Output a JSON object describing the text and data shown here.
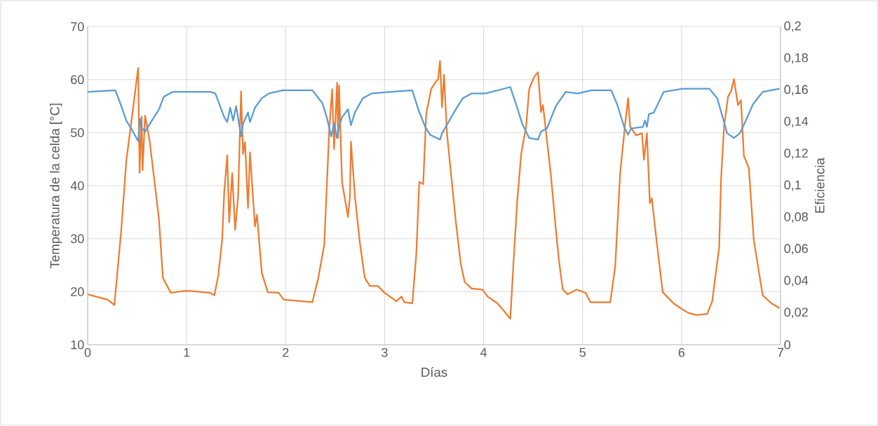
{
  "chart_data": {
    "type": "line",
    "xlabel": "Días",
    "ylabel": "Temperatura de la celda [°C]",
    "y2label": "Eficiencia",
    "xlim": [
      0,
      7
    ],
    "xticks": [
      0,
      1,
      2,
      3,
      4,
      5,
      6,
      7
    ],
    "ylim": [
      10,
      70
    ],
    "yticks": [
      10,
      20,
      30,
      40,
      50,
      60,
      70
    ],
    "y2lim": [
      0,
      0.2
    ],
    "y2ticks": [
      {
        "value": 0,
        "label": "0"
      },
      {
        "value": 0.02,
        "label": "0,02"
      },
      {
        "value": 0.04,
        "label": "0,04"
      },
      {
        "value": 0.06,
        "label": "0,06"
      },
      {
        "value": 0.08,
        "label": "0,08"
      },
      {
        "value": 0.1,
        "label": "0,1"
      },
      {
        "value": 0.12,
        "label": "0,12"
      },
      {
        "value": 0.14,
        "label": "0,14"
      },
      {
        "value": 0.16,
        "label": "0,16"
      },
      {
        "value": 0.18,
        "label": "0,18"
      },
      {
        "value": 0.2,
        "label": "0,2"
      }
    ],
    "grid": true,
    "series": [
      {
        "color": "#ed7d31",
        "axis": "y",
        "x": [
          0,
          0.1,
          0.2,
          0.27,
          0.34,
          0.39,
          0.46,
          0.51,
          0.525,
          0.545,
          0.555,
          0.58,
          0.625,
          0.67,
          0.72,
          0.76,
          0.84,
          1.0,
          1.24,
          1.28,
          1.32,
          1.36,
          1.38,
          1.41,
          1.43,
          1.46,
          1.49,
          1.52,
          1.55,
          1.57,
          1.59,
          1.62,
          1.64,
          1.69,
          1.71,
          1.76,
          1.82,
          1.93,
          1.98,
          2.16,
          2.27,
          2.33,
          2.39,
          2.42,
          2.44,
          2.47,
          2.49,
          2.52,
          2.53,
          2.54,
          2.57,
          2.61,
          2.63,
          2.65,
          2.66,
          2.7,
          2.75,
          2.8,
          2.85,
          2.93,
          3.0,
          3.12,
          3.17,
          3.2,
          3.28,
          3.32,
          3.35,
          3.39,
          3.42,
          3.47,
          3.51,
          3.54,
          3.56,
          3.58,
          3.6,
          3.63,
          3.67,
          3.72,
          3.77,
          3.81,
          3.88,
          3.99,
          4.04,
          4.14,
          4.2,
          4.27,
          4.3,
          4.34,
          4.38,
          4.43,
          4.46,
          4.51,
          4.55,
          4.58,
          4.6,
          4.64,
          4.68,
          4.73,
          4.76,
          4.8,
          4.85,
          4.94,
          5.03,
          5.08,
          5.28,
          5.33,
          5.38,
          5.43,
          5.46,
          5.48,
          5.54,
          5.6,
          5.62,
          5.65,
          5.68,
          5.7,
          5.75,
          5.81,
          5.92,
          5.99,
          6.07,
          6.15,
          6.26,
          6.31,
          6.34,
          6.38,
          6.4,
          6.43,
          6.47,
          6.5,
          6.53,
          6.57,
          6.6,
          6.63,
          6.68,
          6.73,
          6.82,
          6.91,
          6.99
        ],
        "values": [
          19.5,
          19.0,
          18.5,
          17.5,
          31.8,
          44.6,
          54.8,
          62.2,
          42.4,
          53,
          42.9,
          53.2,
          48.6,
          41.6,
          33.7,
          22.6,
          19.8,
          20.2,
          19.8,
          19.3,
          23.1,
          30.1,
          38.9,
          45.7,
          33.1,
          42.4,
          31.7,
          38,
          57.8,
          46,
          48.2,
          35.8,
          46.3,
          32.3,
          34.5,
          23.5,
          19.9,
          19.8,
          18.5,
          18.2,
          18,
          22.6,
          28.8,
          41.6,
          50.3,
          58.2,
          46.9,
          59.4,
          49,
          58.9,
          40.7,
          36.3,
          34.1,
          38,
          48.3,
          38,
          29.2,
          22.6,
          21.1,
          21.1,
          19.8,
          18.2,
          19.1,
          18,
          17.8,
          27,
          40.7,
          40.3,
          53.5,
          58.2,
          59.4,
          60.1,
          63.5,
          54.8,
          60.9,
          49.9,
          42.4,
          33.1,
          25.2,
          21.8,
          20.6,
          20.4,
          19.1,
          17.8,
          16.5,
          14.9,
          24.8,
          37.1,
          46,
          51.2,
          58.2,
          60.5,
          61.4,
          53.9,
          55.2,
          48.6,
          42,
          31.8,
          26.1,
          20.4,
          19.5,
          20.4,
          19.8,
          18,
          18,
          24.8,
          42.4,
          51.6,
          56.5,
          51.2,
          49.5,
          49.9,
          44.9,
          49.9,
          36.7,
          37.6,
          29.2,
          19.9,
          17.8,
          16.9,
          16,
          15.6,
          15.8,
          18.2,
          22.6,
          28.4,
          41.6,
          51.2,
          56.8,
          57.8,
          60.1,
          55.2,
          56.1,
          45.6,
          43.3,
          29.7,
          19.3,
          17.8,
          16.9
        ]
      },
      {
        "color": "#5b9bd5",
        "axis": "y2",
        "x": [
          0,
          0.28,
          0.34,
          0.39,
          0.44,
          0.51,
          0.53,
          0.55,
          0.58,
          0.65,
          0.72,
          0.77,
          0.86,
          1.24,
          1.29,
          1.38,
          1.41,
          1.44,
          1.47,
          1.5,
          1.55,
          1.57,
          1.62,
          1.64,
          1.69,
          1.76,
          1.83,
          1.97,
          2.27,
          2.37,
          2.42,
          2.46,
          2.49,
          2.52,
          2.54,
          2.57,
          2.63,
          2.66,
          2.7,
          2.78,
          2.87,
          3.06,
          3.28,
          3.34,
          3.41,
          3.46,
          3.56,
          3.58,
          3.6,
          3.7,
          3.79,
          3.88,
          4.02,
          4.27,
          4.34,
          4.39,
          4.46,
          4.55,
          4.58,
          4.64,
          4.73,
          4.83,
          4.95,
          5.09,
          5.29,
          5.35,
          5.42,
          5.46,
          5.49,
          5.61,
          5.63,
          5.65,
          5.67,
          5.72,
          5.82,
          6.01,
          6.28,
          6.36,
          6.42,
          6.46,
          6.53,
          6.59,
          6.65,
          6.72,
          6.82,
          6.99
        ],
        "values": [
          0.159,
          0.16,
          0.15,
          0.141,
          0.136,
          0.128,
          0.142,
          0.136,
          0.134,
          0.141,
          0.148,
          0.156,
          0.159,
          0.159,
          0.158,
          0.143,
          0.14,
          0.149,
          0.141,
          0.15,
          0.131,
          0.139,
          0.146,
          0.14,
          0.149,
          0.155,
          0.158,
          0.16,
          0.16,
          0.152,
          0.142,
          0.131,
          0.139,
          0.13,
          0.137,
          0.143,
          0.148,
          0.138,
          0.146,
          0.155,
          0.158,
          0.159,
          0.16,
          0.148,
          0.137,
          0.132,
          0.129,
          0.133,
          0.135,
          0.146,
          0.155,
          0.158,
          0.158,
          0.162,
          0.149,
          0.139,
          0.13,
          0.129,
          0.134,
          0.136,
          0.15,
          0.159,
          0.158,
          0.16,
          0.16,
          0.151,
          0.137,
          0.132,
          0.136,
          0.137,
          0.141,
          0.137,
          0.145,
          0.146,
          0.159,
          0.161,
          0.161,
          0.155,
          0.142,
          0.133,
          0.13,
          0.133,
          0.141,
          0.151,
          0.159,
          0.161
        ]
      }
    ]
  }
}
